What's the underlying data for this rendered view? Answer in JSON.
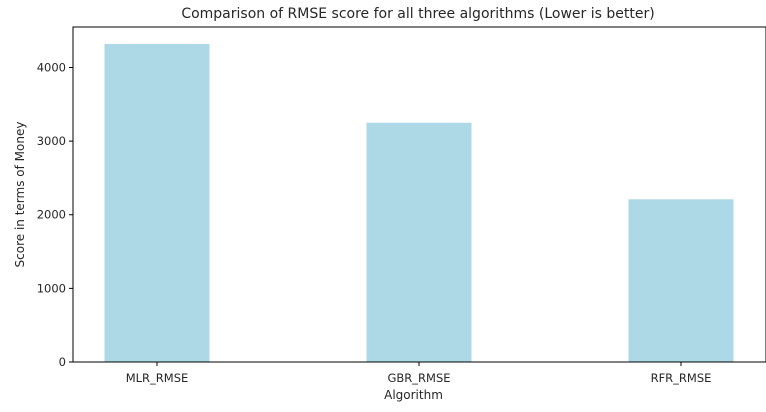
{
  "chart_data": {
    "type": "bar",
    "title": "Comparison of RMSE score for all three algorithms (Lower is better)",
    "xlabel": "Algorithm",
    "ylabel": "Score in terms of Money",
    "categories": [
      "MLR_RMSE",
      "GBR_RMSE",
      "RFR_RMSE"
    ],
    "values": [
      4320,
      3250,
      2210
    ],
    "ylim": [
      0,
      4550
    ],
    "yticks": [
      0,
      1000,
      2000,
      3000,
      4000
    ],
    "bar_color": "#add8e6",
    "grid": false,
    "legend": "none"
  }
}
